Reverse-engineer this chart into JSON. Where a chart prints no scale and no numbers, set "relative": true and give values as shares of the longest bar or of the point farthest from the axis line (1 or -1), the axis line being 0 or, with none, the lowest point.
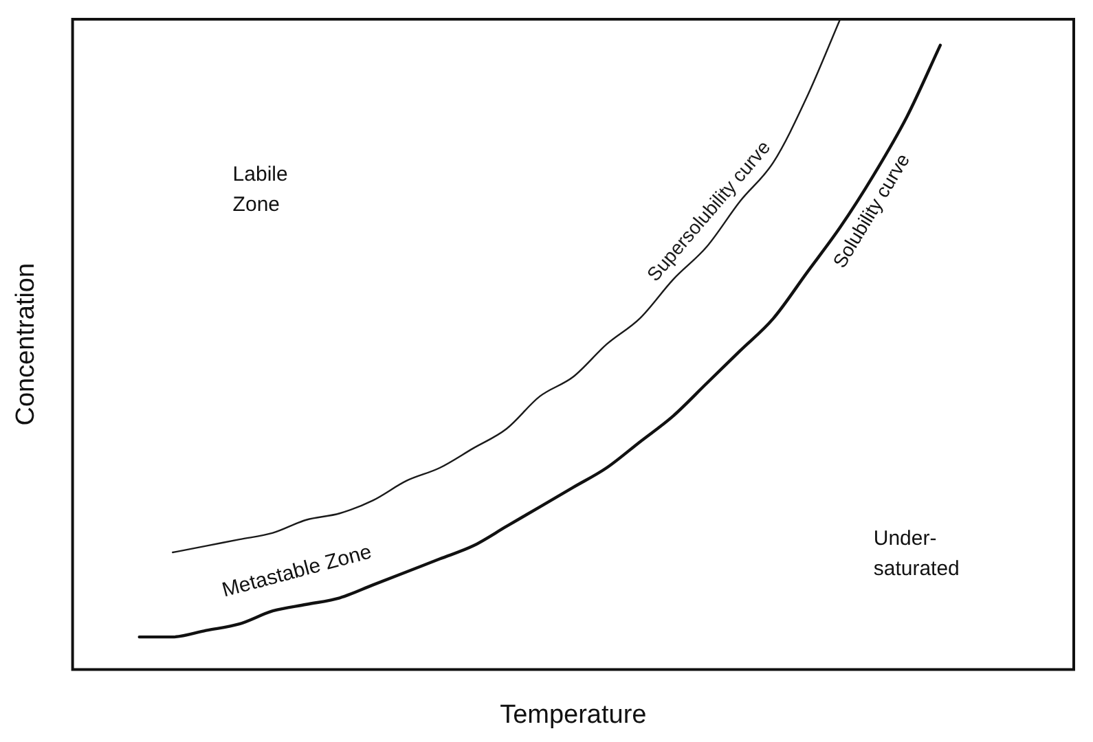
{
  "chart_data": {
    "type": "line",
    "relative": true,
    "xlabel": "Temperature",
    "ylabel": "Concentration",
    "categories": [
      null,
      null,
      null,
      null,
      null,
      null,
      null,
      null,
      null,
      null,
      null,
      null,
      null,
      null,
      null,
      null,
      null,
      null,
      null,
      null,
      null,
      null,
      null,
      null,
      null,
      null,
      null,
      null,
      null,
      null,
      null
    ],
    "series": [
      {
        "name": "Supersolubility curve",
        "color": "#1a1a1a",
        "values": [
          null,
          null,
          null,
          0.18,
          0.19,
          0.2,
          0.21,
          0.23,
          0.24,
          0.26,
          0.29,
          0.31,
          0.34,
          0.37,
          0.42,
          0.45,
          0.5,
          0.54,
          0.6,
          0.65,
          0.72,
          0.78,
          0.88,
          1,
          null,
          null,
          null,
          null,
          null,
          null,
          null
        ]
      },
      {
        "name": "Solubility curve",
        "color": "#111111",
        "values": [
          null,
          null,
          0.05,
          0.05,
          0.06,
          0.07,
          0.09,
          0.1,
          0.11,
          0.13,
          0.15,
          0.17,
          0.19,
          0.22,
          0.25,
          0.28,
          0.31,
          0.35,
          0.39,
          0.44,
          0.49,
          0.54,
          0.61,
          0.68,
          0.76,
          0.85,
          0.96,
          null,
          null,
          null,
          null
        ]
      }
    ],
    "annotations": [
      "Labile Zone",
      "Metastable Zone",
      "Under-saturated"
    ],
    "legend": false,
    "grid": false,
    "marker": "none",
    "line_style": "solid"
  }
}
